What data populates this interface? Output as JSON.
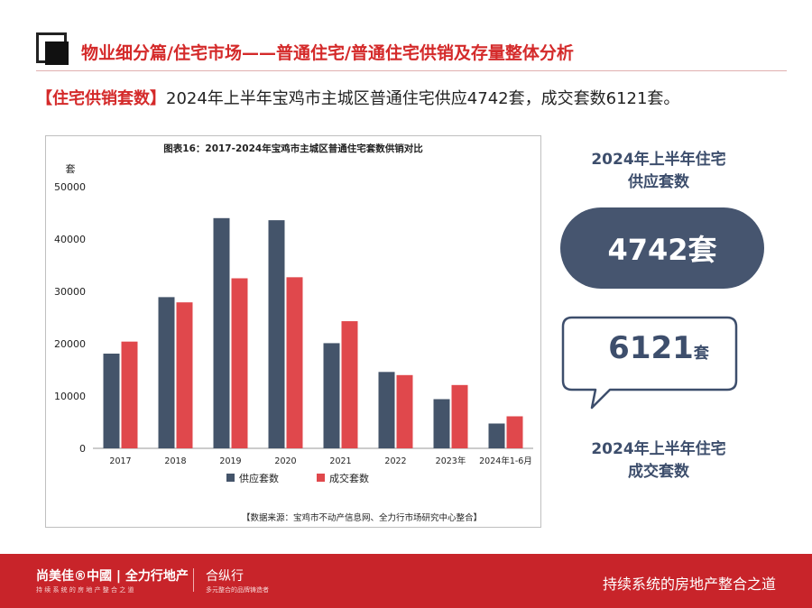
{
  "header": {
    "title": "物业细分篇/住宅市场——普通住宅/普通住宅供销及存量整体分析"
  },
  "summary": {
    "tag": "【住宅供销套数】",
    "text": "2024年上半年宝鸡市主城区普通住宅供应4742套，成交套数6121套。"
  },
  "chart_data": {
    "type": "bar",
    "title": "图表16：2017-2024年宝鸡市主城区普通住宅套数供销对比",
    "ylabel": "套",
    "xlabel": "",
    "ylim": [
      0,
      50000
    ],
    "yticks": [
      "0",
      "10000",
      "20000",
      "30000",
      "40000",
      "50000"
    ],
    "categories": [
      "2017",
      "2018",
      "2019",
      "2020",
      "2021",
      "2022",
      "2023年",
      "2024年1-6月"
    ],
    "series": [
      {
        "name": "供应套数",
        "color": "#44546a",
        "values": [
          18100,
          28900,
          44000,
          43600,
          20100,
          14600,
          9400,
          4742
        ]
      },
      {
        "name": "成交套数",
        "color": "#e0484c",
        "values": [
          20400,
          27900,
          32500,
          32700,
          24300,
          14000,
          12100,
          6121
        ]
      }
    ],
    "grid": false,
    "legend": "bottom"
  },
  "source": "【数据来源：宝鸡市不动产信息网、全力行市场研究中心整合】",
  "sidebar": {
    "supply_title_1": "2024年上半年住宅",
    "supply_title_2": "供应套数",
    "supply_value": "4742套",
    "deal_number": "6121",
    "deal_unit": "套",
    "deal_title_1": "2024年上半年住宅",
    "deal_title_2": "成交套数"
  },
  "footer": {
    "brand": "尚美佳®中國 | 全力行地产",
    "brand_sub": "持 续 系 统 的 房 地 产 整 合 之 道",
    "logo": "合纵行",
    "logo_sub": "多元整合的品牌铸造者",
    "slogan": "持续系统的房地产整合之道"
  },
  "colors": {
    "accent": "#d42a2a",
    "navy": "#44546a",
    "footer_red": "#c8242a"
  }
}
